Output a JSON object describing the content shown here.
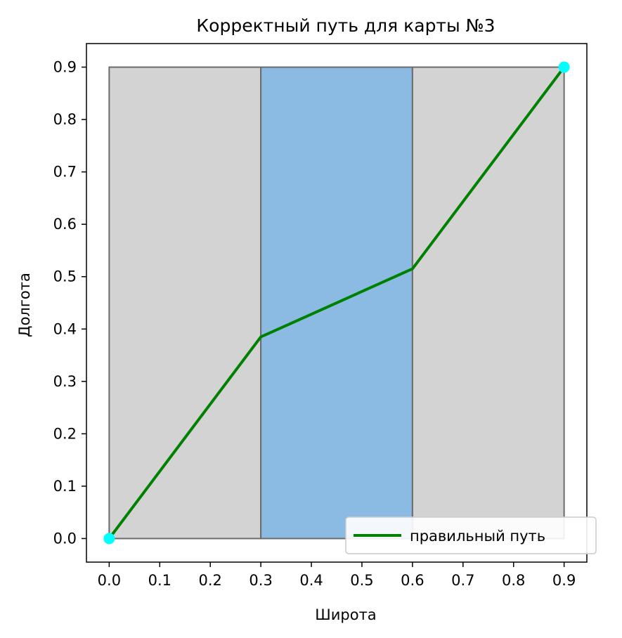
{
  "chart_data": {
    "type": "line",
    "title": "Корректный путь для карты №3",
    "xlabel": "Широта",
    "ylabel": "Долгота",
    "xlim": [
      -0.045,
      0.945
    ],
    "ylim": [
      -0.045,
      0.945
    ],
    "xticks": [
      "0.0",
      "0.1",
      "0.2",
      "0.3",
      "0.4",
      "0.5",
      "0.6",
      "0.7",
      "0.8",
      "0.9"
    ],
    "yticks": [
      "0.0",
      "0.1",
      "0.2",
      "0.3",
      "0.4",
      "0.5",
      "0.6",
      "0.7",
      "0.8",
      "0.9"
    ],
    "xtick_values": [
      0.0,
      0.1,
      0.2,
      0.3,
      0.4,
      0.5,
      0.6,
      0.7,
      0.8,
      0.9
    ],
    "ytick_values": [
      0.0,
      0.1,
      0.2,
      0.3,
      0.4,
      0.5,
      0.6,
      0.7,
      0.8,
      0.9
    ],
    "regions": [
      {
        "x": [
          0.0,
          0.3
        ],
        "y": [
          0.0,
          0.9
        ],
        "fill": "#d3d3d3"
      },
      {
        "x": [
          0.3,
          0.6
        ],
        "y": [
          0.0,
          0.9
        ],
        "fill": "#8bbbe2"
      },
      {
        "x": [
          0.6,
          0.9
        ],
        "y": [
          0.0,
          0.9
        ],
        "fill": "#d3d3d3"
      }
    ],
    "series": [
      {
        "name": "правильный путь",
        "color": "#008000",
        "x": [
          0.0,
          0.3,
          0.6,
          0.9
        ],
        "y": [
          0.0,
          0.385,
          0.515,
          0.9
        ]
      }
    ],
    "endpoints": {
      "color": "#00ffff",
      "points": [
        [
          0.0,
          0.0
        ],
        [
          0.9,
          0.9
        ]
      ]
    },
    "legend": {
      "position": "lower-right"
    },
    "grid": false
  }
}
